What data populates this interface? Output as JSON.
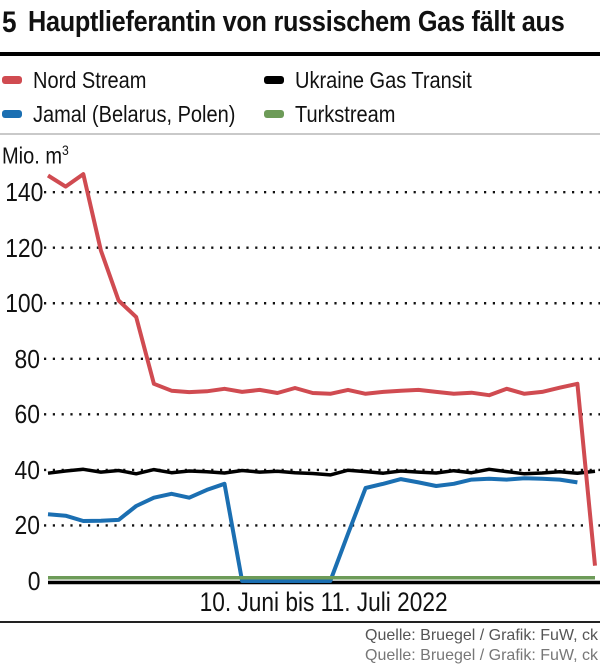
{
  "header": {
    "index": "5",
    "title": "Hauptlieferantin von russischem Gas fällt aus"
  },
  "legend": [
    {
      "label": "Nord Stream",
      "color": "#d04b51"
    },
    {
      "label": "Ukraine Gas Transit",
      "color": "#000000"
    },
    {
      "label": "Jamal (Belarus, Polen)",
      "color": "#1b6fb2"
    },
    {
      "label": "Turkstream",
      "color": "#6d9b58"
    }
  ],
  "chart_data": {
    "type": "line",
    "title": "Hauptlieferantin von russischem Gas fällt aus",
    "unit_prefix": "Mio. m",
    "unit_exponent": "3",
    "xlabel": "10. Juni bis 11. Juli 2022",
    "x_description": "daily values, 10 June to 11 July 2022, 32 days",
    "ylim": [
      0,
      150
    ],
    "yticks": [
      0,
      20,
      40,
      60,
      80,
      100,
      120,
      140
    ],
    "grid": "dotted horizontal",
    "legend_position": "top",
    "series": [
      {
        "name": "Nord Stream",
        "color": "#d04b51",
        "values": [
          146,
          142,
          146.5,
          119,
          101,
          95,
          71,
          68.5,
          68,
          68.3,
          69.2,
          68.1,
          68.8,
          67.7,
          69.5,
          67.7,
          67.4,
          68.8,
          67.4,
          68.1,
          68.5,
          68.8,
          68.1,
          67.4,
          67.8,
          66.9,
          69.2,
          67.4,
          68.1,
          69.6,
          71,
          5.5
        ]
      },
      {
        "name": "Ukraine Gas Transit",
        "color": "#000000",
        "values": [
          38.8,
          39.6,
          40.2,
          39.2,
          39.8,
          38.6,
          40.1,
          39,
          39.6,
          39.3,
          38.9,
          39.8,
          39.2,
          39.5,
          39,
          38.7,
          38.2,
          39.9,
          39.4,
          38.8,
          39.6,
          39.2,
          38.9,
          39.7,
          39,
          40.2,
          39.4,
          38.6,
          38.9,
          39.3,
          38.8,
          39.5
        ]
      },
      {
        "name": "Jamal (Belarus, Polen)",
        "color": "#1b6fb2",
        "values": [
          24,
          23.5,
          21.6,
          21.7,
          22,
          27,
          30,
          31.4,
          30,
          32.8,
          35,
          0,
          0,
          0,
          0,
          0,
          0,
          17,
          33.5,
          35,
          36.7,
          35.5,
          34.2,
          35,
          36.5,
          36.8,
          36.5,
          37,
          36.8,
          36.5,
          35.5,
          null
        ]
      },
      {
        "name": "Turkstream",
        "color": "#6d9b58",
        "values": [
          1.2,
          1.2,
          1.2,
          1.2,
          1.2,
          1.2,
          1.2,
          1.2,
          1.2,
          1.2,
          1.2,
          1.2,
          1.2,
          1.2,
          1.2,
          1.2,
          1.2,
          1.2,
          1.2,
          1.2,
          1.2,
          1.2,
          1.2,
          1.2,
          1.2,
          1.2,
          1.2,
          1.2,
          1.2,
          1.2,
          1.2,
          1.2
        ]
      }
    ]
  },
  "footer": {
    "source": "Quelle: Bruegel / Grafik: FuW, ck",
    "source2": "Quelle: Bruegel / Grafik: FuW, ck"
  }
}
